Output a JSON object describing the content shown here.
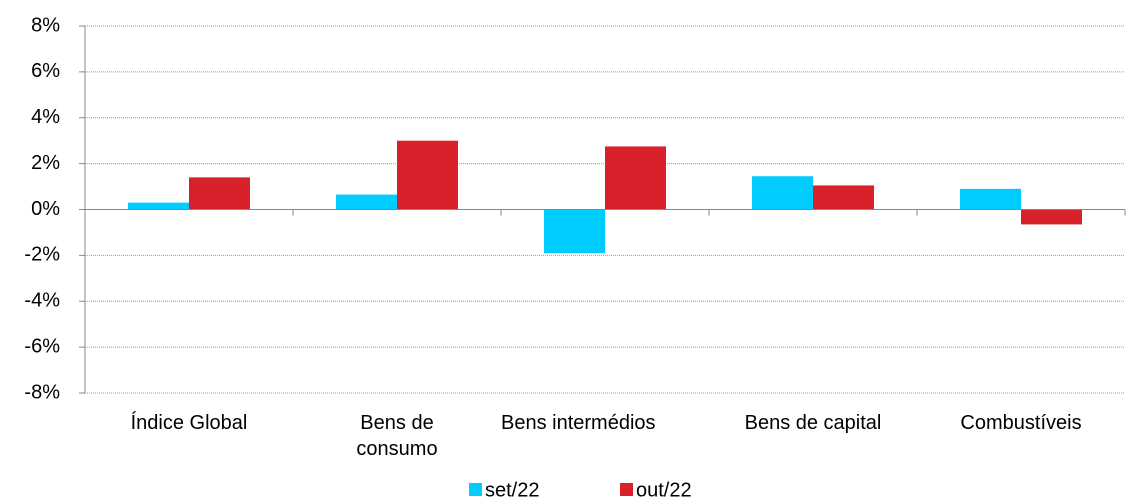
{
  "chart_data": {
    "type": "bar",
    "categories": [
      "Índice Global",
      "Bens de consumo",
      "Bens intermédios",
      "Bens de capital",
      "Combustíveis"
    ],
    "series": [
      {
        "name": "set/22",
        "color": "#00ccff",
        "values": [
          0.3,
          0.65,
          -1.9,
          1.45,
          0.9
        ]
      },
      {
        "name": "out/22",
        "color": "#d9212c",
        "values": [
          1.4,
          3.0,
          2.75,
          1.05,
          -0.65
        ]
      }
    ],
    "ylim": [
      -8,
      8
    ],
    "yticks": [
      {
        "value": -8,
        "label": "-8%"
      },
      {
        "value": -6,
        "label": "-6%"
      },
      {
        "value": -4,
        "label": "-4%"
      },
      {
        "value": -2,
        "label": "-2%"
      },
      {
        "value": 0,
        "label": "0%"
      },
      {
        "value": 2,
        "label": "2%"
      },
      {
        "value": 4,
        "label": "4%"
      },
      {
        "value": 6,
        "label": "6%"
      },
      {
        "value": 8,
        "label": "8%"
      }
    ],
    "grid": true
  }
}
